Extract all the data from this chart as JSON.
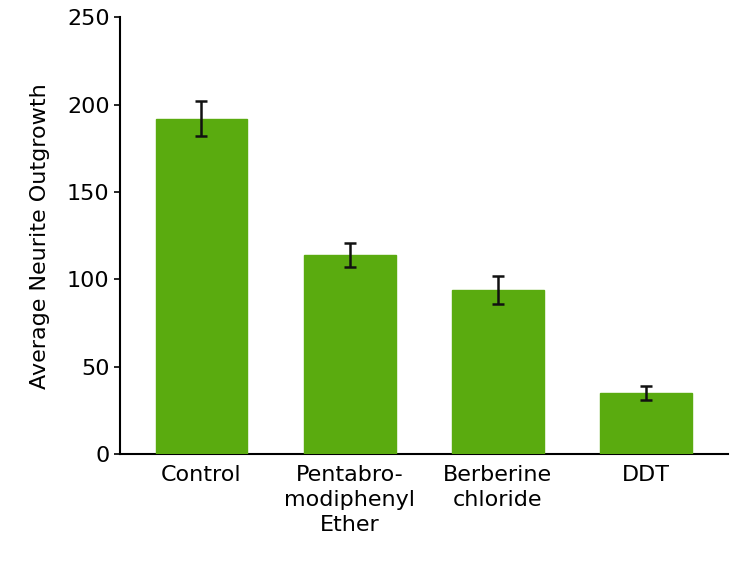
{
  "categories": [
    "Control",
    "Pentabro-\nmodiphenyl\nEther",
    "Berberine\nchloride",
    "DDT"
  ],
  "values": [
    192,
    114,
    94,
    35
  ],
  "errors": [
    10,
    7,
    8,
    4
  ],
  "bar_color": "#5aab0f",
  "bar_width": 0.62,
  "ylabel": "Average Neurite Outgrowth",
  "ylim": [
    0,
    250
  ],
  "yticks": [
    0,
    50,
    100,
    150,
    200,
    250
  ],
  "background_color": "#ffffff",
  "ylabel_fontsize": 16,
  "tick_fontsize": 16,
  "xlabel_fontsize": 16,
  "error_capsize": 4,
  "error_linewidth": 1.8,
  "error_color": "#111111",
  "spine_linewidth": 1.5
}
